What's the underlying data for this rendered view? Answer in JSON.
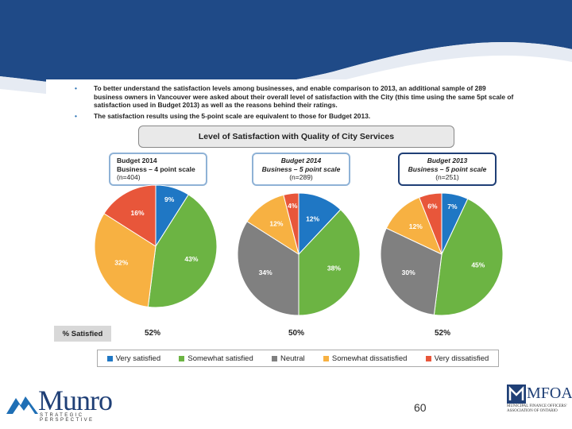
{
  "slide": {
    "bullets": [
      "To better understand the satisfaction levels among businesses, and enable comparison to 2013, an additional sample of 289 business owners in Vancouver were asked about their overall level of satisfaction with the City (this time using the same 5pt scale of satisfaction used in Budget 2013) as well as the reasons behind their ratings.",
      "The satisfaction results using the 5-point scale are equivalent to those for Budget 2013."
    ],
    "bullet_symbol": "•",
    "page_number": "60",
    "logo_left": {
      "word": "Munro",
      "tagline": "STRATEGIC PERSPECTIVE"
    },
    "logo_right": {
      "word": "MFOA",
      "tagline": "MUNICIPAL FINANCE OFFICERS' ASSOCIATION OF ONTARIO"
    },
    "colors": {
      "header_blue": "#1f3f76",
      "very_satisfied": "#1f77c4",
      "somewhat_satisfied": "#6cb443",
      "neutral": "#808080",
      "somewhat_dissatisfied": "#f7b142",
      "very_dissatisfied": "#e8563a"
    }
  },
  "chart_data": {
    "type": "pie",
    "title": "Level of Satisfaction with Quality of City Services",
    "summary_label": "% Satisfied",
    "legend": [
      "Very satisfied",
      "Somewhat satisfied",
      "Neutral",
      "Somewhat dissatisfied",
      "Very dissatisfied"
    ],
    "pies": [
      {
        "heading": [
          "Budget 2014",
          "Business – 4 point scale",
          "(n=404)"
        ],
        "slices": [
          {
            "category": "Very satisfied",
            "value": 9,
            "label": "9%"
          },
          {
            "category": "Somewhat satisfied",
            "value": 43,
            "label": "43%"
          },
          {
            "category": "Somewhat dissatisfied",
            "value": 32,
            "label": "32%"
          },
          {
            "category": "Very dissatisfied",
            "value": 16,
            "label": "16%"
          }
        ],
        "satisfied": "52%"
      },
      {
        "heading": [
          "Budget 2014",
          "Business – 5 point scale",
          "(n=289)"
        ],
        "slices": [
          {
            "category": "Very satisfied",
            "value": 12,
            "label": "12%"
          },
          {
            "category": "Somewhat satisfied",
            "value": 38,
            "label": "38%"
          },
          {
            "category": "Neutral",
            "value": 34,
            "label": "34%"
          },
          {
            "category": "Somewhat dissatisfied",
            "value": 12,
            "label": "12%"
          },
          {
            "category": "Very dissatisfied",
            "value": 4,
            "label": "4%"
          }
        ],
        "satisfied": "50%"
      },
      {
        "heading": [
          "Budget 2013",
          "Business – 5 point scale",
          "(n=251)"
        ],
        "slices": [
          {
            "category": "Very satisfied",
            "value": 7,
            "label": "7%"
          },
          {
            "category": "Somewhat satisfied",
            "value": 45,
            "label": "45%"
          },
          {
            "category": "Neutral",
            "value": 30,
            "label": "30%"
          },
          {
            "category": "Somewhat dissatisfied",
            "value": 12,
            "label": "12%"
          },
          {
            "category": "Very dissatisfied",
            "value": 6,
            "label": "6%"
          }
        ],
        "satisfied": "52%"
      }
    ]
  }
}
